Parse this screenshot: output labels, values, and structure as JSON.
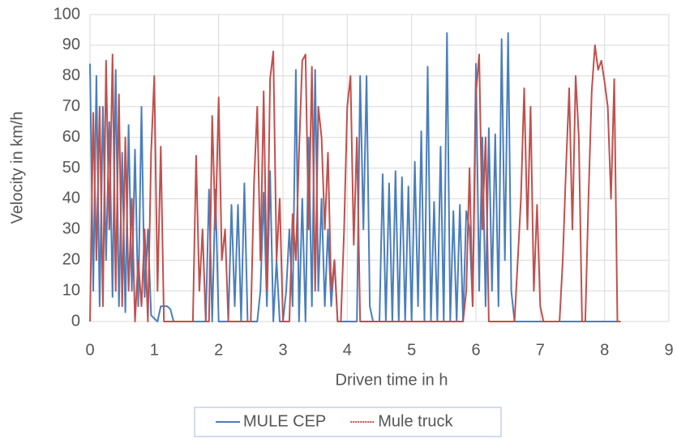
{
  "chart_data": {
    "type": "line",
    "x_label": "Driven time in h",
    "y_label": "Velocity in km/h",
    "x": [
      0,
      0.05,
      0.1,
      0.15,
      0.2,
      0.25,
      0.3,
      0.35,
      0.4,
      0.45,
      0.5,
      0.55,
      0.6,
      0.65,
      0.7,
      0.75,
      0.8,
      0.85,
      0.9,
      0.95,
      1,
      1.05,
      1.1,
      1.15,
      1.2,
      1.25,
      1.3,
      1.35,
      1.4,
      1.45,
      1.5,
      1.55,
      1.6,
      1.65,
      1.7,
      1.75,
      1.8,
      1.85,
      1.9,
      1.95,
      2,
      2.05,
      2.1,
      2.15,
      2.2,
      2.25,
      2.3,
      2.35,
      2.4,
      2.45,
      2.5,
      2.55,
      2.6,
      2.65,
      2.7,
      2.75,
      2.8,
      2.85,
      2.9,
      2.95,
      3,
      3.05,
      3.1,
      3.15,
      3.2,
      3.25,
      3.3,
      3.35,
      3.4,
      3.45,
      3.5,
      3.55,
      3.6,
      3.65,
      3.7,
      3.75,
      3.8,
      3.85,
      3.9,
      3.95,
      4,
      4.05,
      4.1,
      4.15,
      4.2,
      4.25,
      4.3,
      4.35,
      4.4,
      4.45,
      4.5,
      4.55,
      4.6,
      4.65,
      4.7,
      4.75,
      4.8,
      4.85,
      4.9,
      4.95,
      5,
      5.05,
      5.1,
      5.15,
      5.2,
      5.25,
      5.3,
      5.35,
      5.4,
      5.45,
      5.5,
      5.55,
      5.6,
      5.65,
      5.7,
      5.75,
      5.8,
      5.85,
      5.9,
      5.95,
      6,
      6.05,
      6.1,
      6.15,
      6.2,
      6.25,
      6.3,
      6.35,
      6.4,
      6.45,
      6.5,
      6.55,
      6.6,
      6.65,
      6.7,
      6.75,
      6.8,
      6.85,
      6.9,
      6.95,
      7,
      7.05,
      7.1,
      7.15,
      7.2,
      7.25,
      7.3,
      7.35,
      7.4,
      7.45,
      7.5,
      7.55,
      7.6,
      7.65,
      7.7,
      7.75,
      7.8,
      7.85,
      7.9,
      7.95,
      8,
      8.05,
      8.1,
      8.15,
      8.2,
      8.25
    ],
    "series": [
      {
        "name": "MULE CEP",
        "color": "#4a7ebb",
        "legend_dash": "solid",
        "values": [
          84,
          10,
          80,
          5,
          70,
          20,
          65,
          8,
          82,
          5,
          55,
          3,
          64,
          10,
          56,
          5,
          70,
          8,
          30,
          2,
          1,
          0,
          5,
          5,
          5,
          4,
          0,
          0,
          0,
          0,
          0,
          0,
          0,
          0,
          0,
          0,
          0,
          43,
          0,
          43,
          0,
          0,
          0,
          0,
          38,
          5,
          38,
          0,
          45,
          0,
          0,
          0,
          0,
          10,
          42,
          5,
          49,
          0,
          20,
          0,
          0,
          10,
          30,
          5,
          82,
          0,
          40,
          0,
          60,
          5,
          82,
          10,
          40,
          5,
          30,
          5,
          20,
          0,
          0,
          0,
          0,
          0,
          0,
          0,
          80,
          30,
          80,
          5,
          0,
          0,
          0,
          48,
          0,
          45,
          0,
          49,
          0,
          47,
          0,
          44,
          0,
          52,
          5,
          62,
          0,
          83,
          0,
          39,
          0,
          57,
          0,
          94,
          0,
          36,
          0,
          38,
          0,
          36,
          30,
          5,
          84,
          10,
          60,
          5,
          63,
          10,
          61,
          5,
          92,
          20,
          94,
          10,
          0,
          0,
          0,
          0,
          0,
          0,
          0,
          0,
          0,
          0,
          0,
          0,
          0,
          0,
          0,
          0,
          0,
          0,
          0,
          0,
          0,
          0,
          0,
          0,
          0,
          0,
          0,
          0,
          0,
          0,
          0,
          0,
          0,
          0
        ]
      },
      {
        "name": "Mule truck",
        "color": "#c0504d",
        "legend_dash": "dotted",
        "values": [
          0,
          68,
          20,
          70,
          5,
          85,
          30,
          87,
          10,
          74,
          5,
          60,
          10,
          40,
          0,
          20,
          5,
          30,
          0,
          55,
          80,
          10,
          57,
          0,
          0,
          0,
          0,
          0,
          0,
          0,
          0,
          0,
          0,
          54,
          10,
          30,
          0,
          0,
          67,
          30,
          73,
          20,
          30,
          0,
          0,
          0,
          0,
          0,
          0,
          0,
          0,
          45,
          70,
          20,
          75,
          10,
          79,
          88,
          20,
          40,
          0,
          0,
          0,
          35,
          20,
          55,
          85,
          87,
          30,
          83,
          10,
          70,
          60,
          30,
          55,
          10,
          20,
          0,
          0,
          30,
          70,
          80,
          25,
          60,
          0,
          0,
          0,
          0,
          0,
          0,
          0,
          0,
          0,
          0,
          0,
          0,
          0,
          0,
          0,
          0,
          0,
          0,
          0,
          0,
          0,
          0,
          0,
          0,
          0,
          0,
          0,
          0,
          0,
          0,
          0,
          0,
          0,
          10,
          50,
          5,
          74,
          87,
          30,
          60,
          0,
          0,
          0,
          0,
          0,
          0,
          0,
          0,
          0,
          20,
          40,
          76,
          30,
          70,
          10,
          38,
          5,
          0,
          0,
          0,
          0,
          0,
          0,
          20,
          50,
          76,
          30,
          80,
          60,
          0,
          0,
          40,
          75,
          90,
          82,
          85,
          78,
          70,
          40,
          79,
          0,
          0
        ]
      }
    ],
    "xlim": [
      0,
      9
    ],
    "xticks": [
      0,
      1,
      2,
      3,
      4,
      5,
      6,
      7,
      8,
      9
    ],
    "ylim": [
      0,
      100
    ],
    "yticks": [
      0,
      10,
      20,
      30,
      40,
      50,
      60,
      70,
      80,
      90,
      100
    ],
    "grid": true,
    "legend": "bottom"
  }
}
